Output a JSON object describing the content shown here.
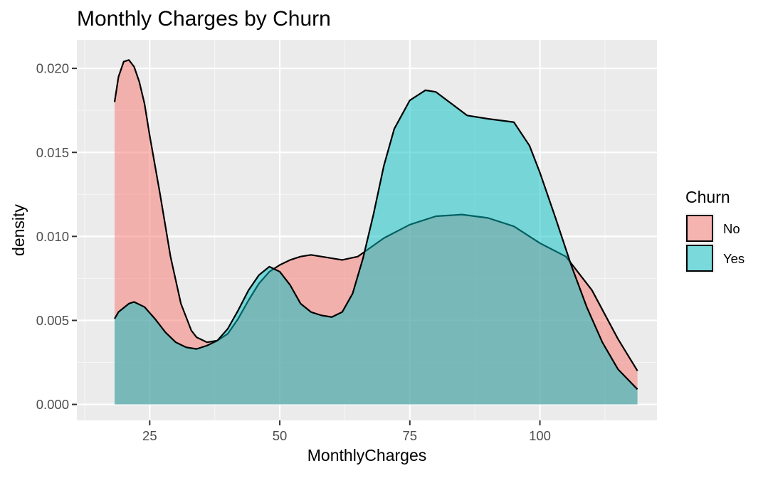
{
  "chart_data": {
    "type": "area",
    "title": "Monthly Charges by Churn",
    "xlabel": "MonthlyCharges",
    "ylabel": "density",
    "xlim": [
      11,
      122.5
    ],
    "ylim": [
      -0.00095,
      0.0217
    ],
    "x_ticks": [
      25,
      50,
      75,
      100
    ],
    "y_ticks": [
      0.0,
      0.005,
      0.01,
      0.015,
      0.02
    ],
    "y_tick_labels": [
      "0.000",
      "0.005",
      "0.010",
      "0.015",
      "0.020"
    ],
    "grid": true,
    "legend": {
      "title": "Churn",
      "position": "right"
    },
    "series": [
      {
        "name": "No",
        "color": "#F8766D",
        "x": [
          18.25,
          19,
          20,
          21,
          22,
          23,
          24,
          25,
          27,
          29,
          31,
          33,
          34,
          36,
          38,
          40,
          42,
          44,
          46,
          48,
          50,
          52,
          54,
          56,
          58,
          60,
          62,
          65,
          70,
          75,
          80,
          85,
          90,
          95,
          100,
          105,
          110,
          115,
          118.75
        ],
        "values": [
          0.018,
          0.0195,
          0.0204,
          0.0205,
          0.0201,
          0.0192,
          0.0179,
          0.016,
          0.0125,
          0.0088,
          0.006,
          0.0044,
          0.004,
          0.0037,
          0.0038,
          0.0042,
          0.0051,
          0.0062,
          0.0072,
          0.0079,
          0.0083,
          0.0086,
          0.0088,
          0.0089,
          0.0088,
          0.0087,
          0.0086,
          0.0088,
          0.0099,
          0.0107,
          0.0112,
          0.0113,
          0.0111,
          0.0106,
          0.0096,
          0.0088,
          0.0068,
          0.0039,
          0.002
        ]
      },
      {
        "name": "Yes",
        "color": "#00BFC4",
        "x": [
          18.25,
          19,
          21,
          22,
          24,
          26,
          28,
          30,
          32,
          34,
          36,
          38,
          40,
          42,
          44,
          46,
          48,
          50,
          52,
          54,
          56,
          58,
          60,
          62,
          64,
          66,
          68,
          70,
          72,
          75,
          78,
          80,
          83,
          86,
          90,
          95,
          98,
          100,
          103,
          106,
          109,
          112,
          115,
          118.75
        ],
        "values": [
          0.0051,
          0.0055,
          0.006,
          0.0061,
          0.0058,
          0.0051,
          0.0043,
          0.0037,
          0.0034,
          0.0033,
          0.0035,
          0.0038,
          0.0045,
          0.0056,
          0.0068,
          0.0077,
          0.0082,
          0.0079,
          0.0071,
          0.006,
          0.0055,
          0.0053,
          0.0052,
          0.0055,
          0.0066,
          0.0087,
          0.0113,
          0.0142,
          0.0164,
          0.0181,
          0.0187,
          0.0186,
          0.0179,
          0.0172,
          0.017,
          0.0168,
          0.0154,
          0.0138,
          0.0111,
          0.0083,
          0.0058,
          0.0037,
          0.0021,
          0.0009
        ]
      }
    ]
  }
}
